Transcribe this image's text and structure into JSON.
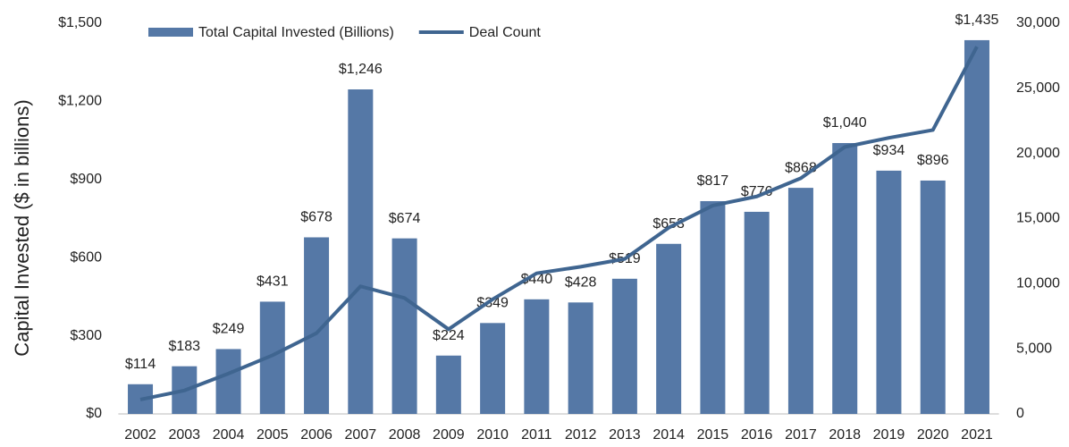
{
  "chart_data": {
    "type": "bar_line",
    "y_label": "Capital Invested ($ in billions)",
    "categories": [
      "2002",
      "2003",
      "2004",
      "2005",
      "2006",
      "2007",
      "2008",
      "2009",
      "2010",
      "2011",
      "2012",
      "2013",
      "2014",
      "2015",
      "2016",
      "2017",
      "2018",
      "2019",
      "2020",
      "2021"
    ],
    "series": [
      {
        "name": "Total Capital Invested (Billions)",
        "color": "#5578a6",
        "kind": "bar",
        "values": [
          114,
          183,
          249,
          431,
          678,
          1246,
          674,
          224,
          349,
          440,
          428,
          519,
          653,
          817,
          776,
          868,
          1040,
          934,
          896,
          1435
        ],
        "value_labels": [
          "$114",
          "$183",
          "$249",
          "$431",
          "$678",
          "$1,246",
          "$674",
          "$224",
          "$349",
          "$440",
          "$428",
          "$519",
          "$653",
          "$817",
          "$776",
          "$868",
          "$1,040",
          "$934",
          "$896",
          "$1,435"
        ]
      },
      {
        "name": "Deal Count",
        "color": "#3f6590",
        "kind": "line",
        "axis": "y2",
        "values": [
          1100,
          1800,
          3100,
          4500,
          6200,
          9800,
          8900,
          6500,
          8800,
          10800,
          11300,
          11900,
          14300,
          16000,
          16700,
          18100,
          20500,
          21200,
          21800,
          28200
        ]
      }
    ],
    "ylim": [
      0,
      1500
    ],
    "yticks": [
      {
        "value": 0,
        "label": "$0"
      },
      {
        "value": 300,
        "label": "$300"
      },
      {
        "value": 600,
        "label": "$600"
      },
      {
        "value": 900,
        "label": "$900"
      },
      {
        "value": 1200,
        "label": "$1,200"
      },
      {
        "value": 1500,
        "label": "$1,500"
      }
    ],
    "y2lim": [
      0,
      30000
    ],
    "y2ticks": [
      0,
      {
        "value": 5000,
        "label": "5,000"
      },
      {
        "value": 10000,
        "label": "10,000"
      },
      {
        "value": 15000,
        "label": "15,000"
      },
      {
        "value": 20000,
        "label": "20,000"
      },
      {
        "value": 25000,
        "label": "25,000"
      },
      {
        "value": 30000,
        "label": "30,000"
      }
    ],
    "legend": "top-left"
  }
}
